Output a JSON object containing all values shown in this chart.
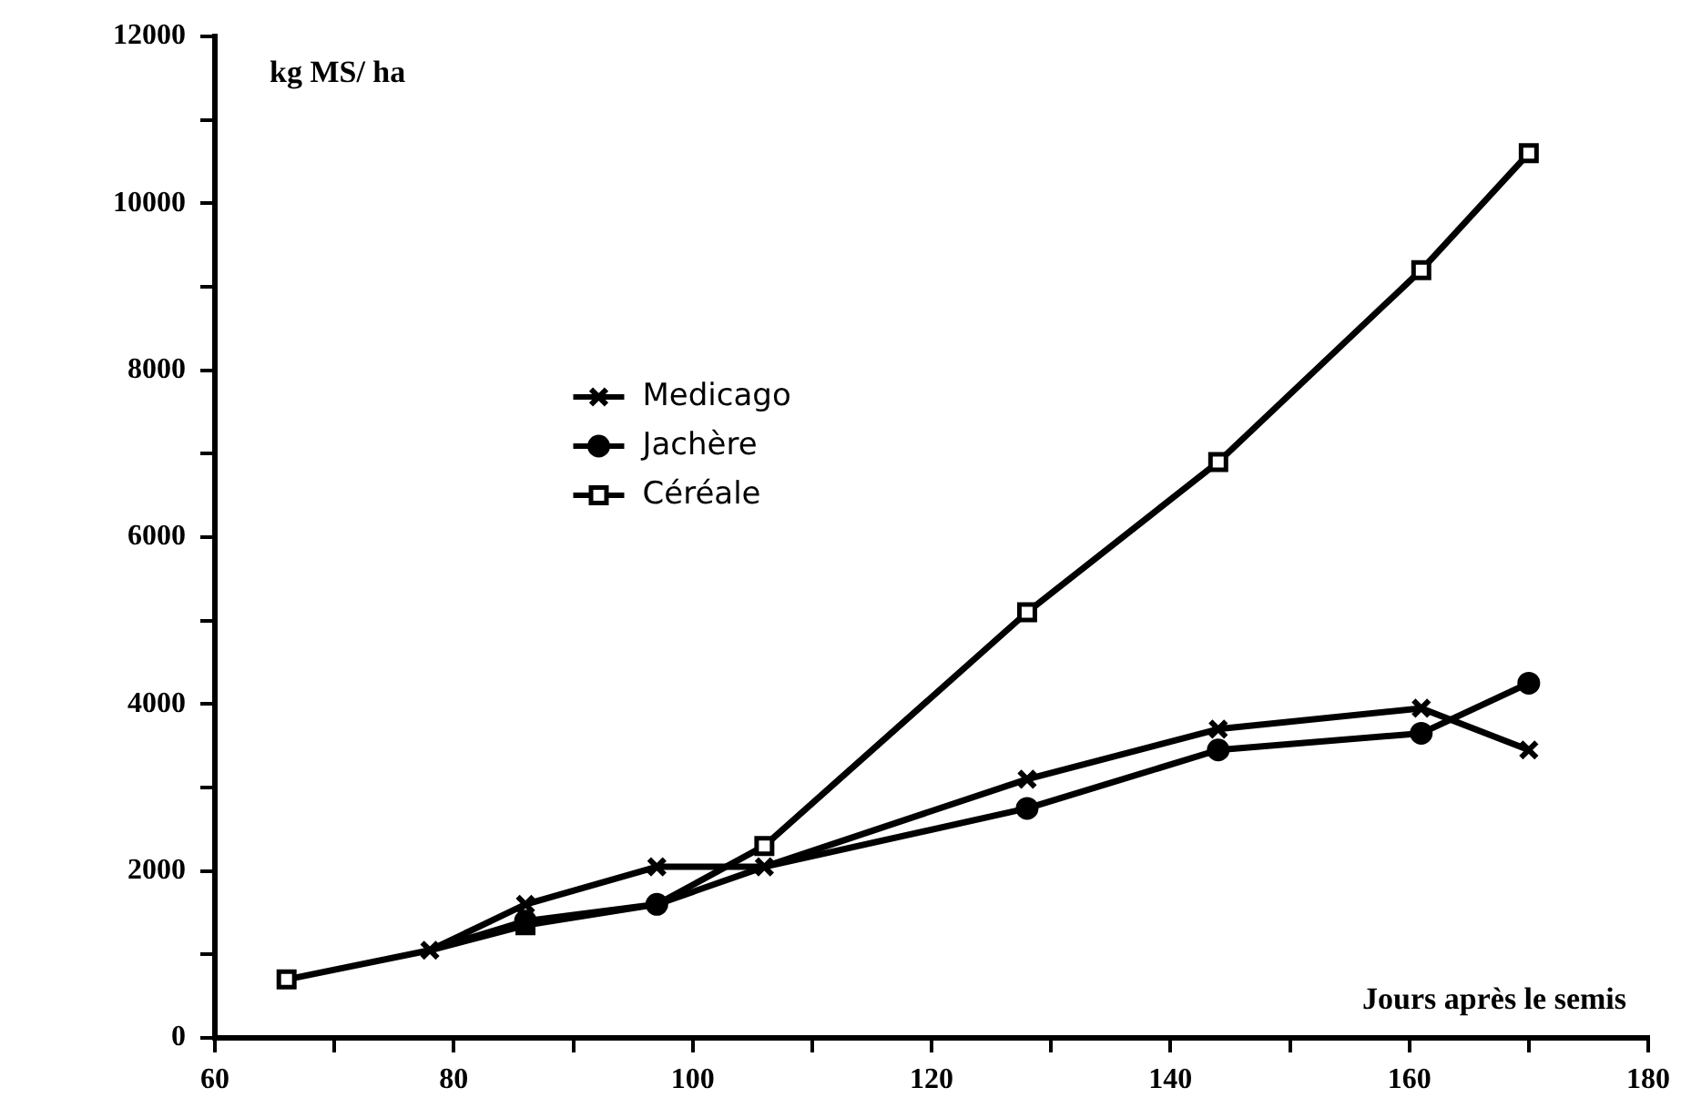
{
  "chart_data": {
    "type": "line",
    "xlabel": "Jours après le semis",
    "ylabel": "kg MS/ ha",
    "xlim": [
      60,
      180
    ],
    "ylim": [
      0,
      12000
    ],
    "xticks": [
      60,
      {
        "value": 70,
        "label": null
      },
      80,
      {
        "value": 90,
        "label": null
      },
      100,
      {
        "value": 110,
        "label": null
      },
      120,
      {
        "value": 130,
        "label": null
      },
      140,
      {
        "value": 150,
        "label": null
      },
      160,
      {
        "value": 170,
        "label": null
      },
      180
    ],
    "yticks": [
      0,
      {
        "value": 1000,
        "label": null
      },
      2000,
      {
        "value": 3000,
        "label": null
      },
      4000,
      {
        "value": 5000,
        "label": null
      },
      6000,
      {
        "value": 7000,
        "label": null
      },
      8000,
      {
        "value": 9000,
        "label": null
      },
      10000,
      {
        "value": 11000,
        "label": null
      },
      12000
    ],
    "grid": false,
    "legend": "left",
    "line_style": "solid",
    "series": [
      {
        "name": "Medicago",
        "color": "#000000",
        "marker": "cross",
        "x": [
          78,
          86,
          97,
          106,
          128,
          144,
          161,
          170
        ],
        "values": [
          1050,
          1600,
          2050,
          2050,
          3100,
          3700,
          3950,
          3450
        ]
      },
      {
        "name": "Jachère",
        "color": "#000000",
        "marker": "circle",
        "x": [
          78,
          86,
          97,
          106,
          128,
          144,
          161,
          170
        ],
        "values": [
          1050,
          1400,
          1600,
          2050,
          2750,
          3450,
          3650,
          4250
        ]
      },
      {
        "name": "Céréale",
        "color": "#000000",
        "marker": "square",
        "x": [
          66,
          78,
          86,
          97,
          106,
          128,
          144,
          161,
          170
        ],
        "values": [
          700,
          1050,
          1350,
          1600,
          2300,
          5100,
          6900,
          9200,
          10600
        ]
      }
    ]
  }
}
